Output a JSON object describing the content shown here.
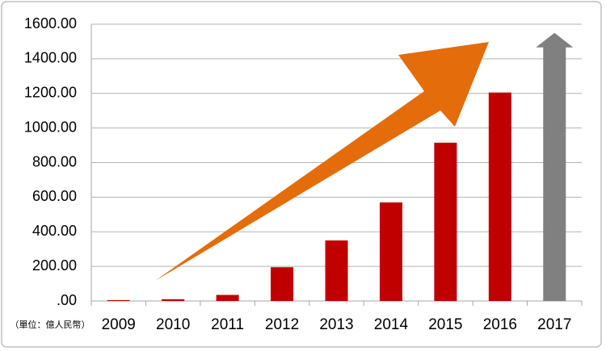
{
  "chart_data": {
    "type": "bar",
    "categories": [
      "2009",
      "2010",
      "2011",
      "2012",
      "2013",
      "2014",
      "2015",
      "2016",
      "2017"
    ],
    "values": [
      5,
      10,
      35,
      195,
      350,
      570,
      915,
      1205,
      1550
    ],
    "colors": [
      "#c00000",
      "#c00000",
      "#c00000",
      "#c00000",
      "#c00000",
      "#c00000",
      "#c00000",
      "#c00000",
      "#808080"
    ],
    "ylim": [
      0,
      1600
    ],
    "yticks": [
      {
        "value": 0,
        "label": ".00"
      },
      {
        "value": 200,
        "label": "200.00"
      },
      {
        "value": 400,
        "label": "400.00"
      },
      {
        "value": 600,
        "label": "600.00"
      },
      {
        "value": 800,
        "label": "800.00"
      },
      {
        "value": 1000,
        "label": "1000.00"
      },
      {
        "value": 1200,
        "label": "1200.00"
      },
      {
        "value": 1400,
        "label": "1400.00"
      },
      {
        "value": 1600,
        "label": "1600.00"
      }
    ],
    "grid": true,
    "unit_label": "（單位：億人民幣）"
  }
}
